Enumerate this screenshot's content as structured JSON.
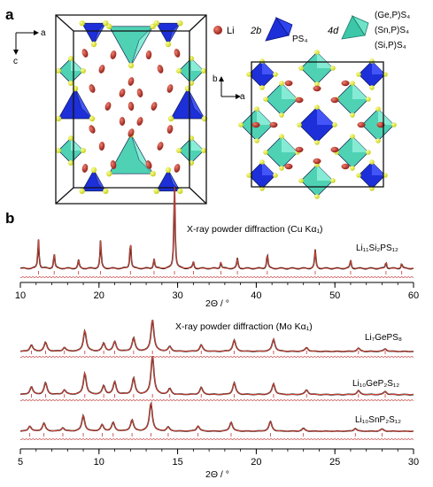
{
  "panel_a": {
    "label": "a",
    "axes_left": {
      "a": "a",
      "c": "c"
    },
    "axes_right": {
      "b": "b",
      "a": "a"
    },
    "legend": {
      "li_label": "Li",
      "site_2b": "2b",
      "ps4_label": "PS₄",
      "site_4d": "4d",
      "tet_labels": [
        "(Ge,P)S₄",
        "(Sn,P)S₄",
        "(Si,P)S₄"
      ]
    },
    "colors": {
      "ps4": "#1d2fd8",
      "mixed_tet": "#4fd2b4",
      "li": "#c0392b",
      "sulfur": "#e6ef2a",
      "frame": "#111111"
    }
  },
  "panel_b": {
    "label": "b",
    "top": {
      "title": "X-ray powder diffraction (Cu Kα₁)",
      "series_label": "Li₁₁Si₂PS₁₂",
      "xlabel": "2Θ / °",
      "ticks": [
        "10",
        "20",
        "30",
        "40",
        "50",
        "60"
      ]
    },
    "bottom": {
      "title": "X-ray powder diffraction (Mo Kα₁)",
      "series_labels": [
        "Li₇GePS₈",
        "Li₁₀GeP₂S₁₂",
        "Li₁₀SnP₂S₁₂"
      ],
      "xlabel": "2Θ / °",
      "ticks": [
        "5",
        "10",
        "15",
        "20",
        "25",
        "30"
      ]
    },
    "colors": {
      "obs": "#2a1a14",
      "fit": "#d9453a",
      "diff": "#c84a4a",
      "ticks": "#cc3333"
    }
  },
  "chart_data": [
    {
      "type": "line",
      "title": "X-ray powder diffraction (Cu Kα₁)",
      "xlabel": "2Θ / °",
      "ylabel": "",
      "xlim": [
        10,
        60
      ],
      "series": [
        {
          "name": "Li₁₁Si₂PS₁₂",
          "peaks": [
            [
              12.3,
              0.35
            ],
            [
              14.3,
              0.18
            ],
            [
              17.4,
              0.1
            ],
            [
              20.2,
              0.33
            ],
            [
              24.0,
              0.33
            ],
            [
              27.0,
              0.12
            ],
            [
              29.6,
              1.0
            ],
            [
              32.0,
              0.08
            ],
            [
              35.5,
              0.08
            ],
            [
              37.6,
              0.12
            ],
            [
              41.4,
              0.18
            ],
            [
              47.5,
              0.22
            ],
            [
              52.0,
              0.1
            ],
            [
              56.5,
              0.08
            ],
            [
              58.5,
              0.06
            ]
          ]
        }
      ]
    },
    {
      "type": "line",
      "title": "X-ray powder diffraction (Mo Kα₁)",
      "xlabel": "2Θ / °",
      "ylabel": "",
      "xlim": [
        5,
        30
      ],
      "series": [
        {
          "name": "Li₇GePS₈",
          "peaks": [
            [
              5.7,
              0.2
            ],
            [
              6.6,
              0.28
            ],
            [
              7.8,
              0.12
            ],
            [
              9.1,
              0.65
            ],
            [
              10.3,
              0.25
            ],
            [
              11.0,
              0.3
            ],
            [
              12.2,
              0.42
            ],
            [
              13.4,
              1.0
            ],
            [
              14.5,
              0.15
            ],
            [
              16.5,
              0.2
            ],
            [
              18.6,
              0.35
            ],
            [
              21.1,
              0.38
            ],
            [
              23.2,
              0.12
            ],
            [
              26.5,
              0.1
            ],
            [
              28.2,
              0.08
            ]
          ]
        },
        {
          "name": "Li₁₀GeP₂S₁₂",
          "peaks": [
            [
              5.7,
              0.2
            ],
            [
              6.6,
              0.3
            ],
            [
              7.8,
              0.12
            ],
            [
              9.1,
              0.55
            ],
            [
              10.3,
              0.22
            ],
            [
              11.0,
              0.32
            ],
            [
              12.2,
              0.42
            ],
            [
              13.4,
              1.0
            ],
            [
              14.5,
              0.15
            ],
            [
              16.5,
              0.18
            ],
            [
              18.6,
              0.3
            ],
            [
              21.1,
              0.28
            ],
            [
              23.2,
              0.12
            ],
            [
              26.5,
              0.1
            ],
            [
              28.2,
              0.08
            ]
          ]
        },
        {
          "name": "Li₁₀SnP₂S₁₂",
          "peaks": [
            [
              5.6,
              0.18
            ],
            [
              6.5,
              0.28
            ],
            [
              7.7,
              0.12
            ],
            [
              9.0,
              0.55
            ],
            [
              10.2,
              0.22
            ],
            [
              10.9,
              0.3
            ],
            [
              12.1,
              0.4
            ],
            [
              13.3,
              1.0
            ],
            [
              14.4,
              0.14
            ],
            [
              16.3,
              0.18
            ],
            [
              18.4,
              0.32
            ],
            [
              20.9,
              0.34
            ],
            [
              23.0,
              0.1
            ],
            [
              26.3,
              0.1
            ],
            [
              28.0,
              0.08
            ]
          ]
        }
      ]
    }
  ]
}
